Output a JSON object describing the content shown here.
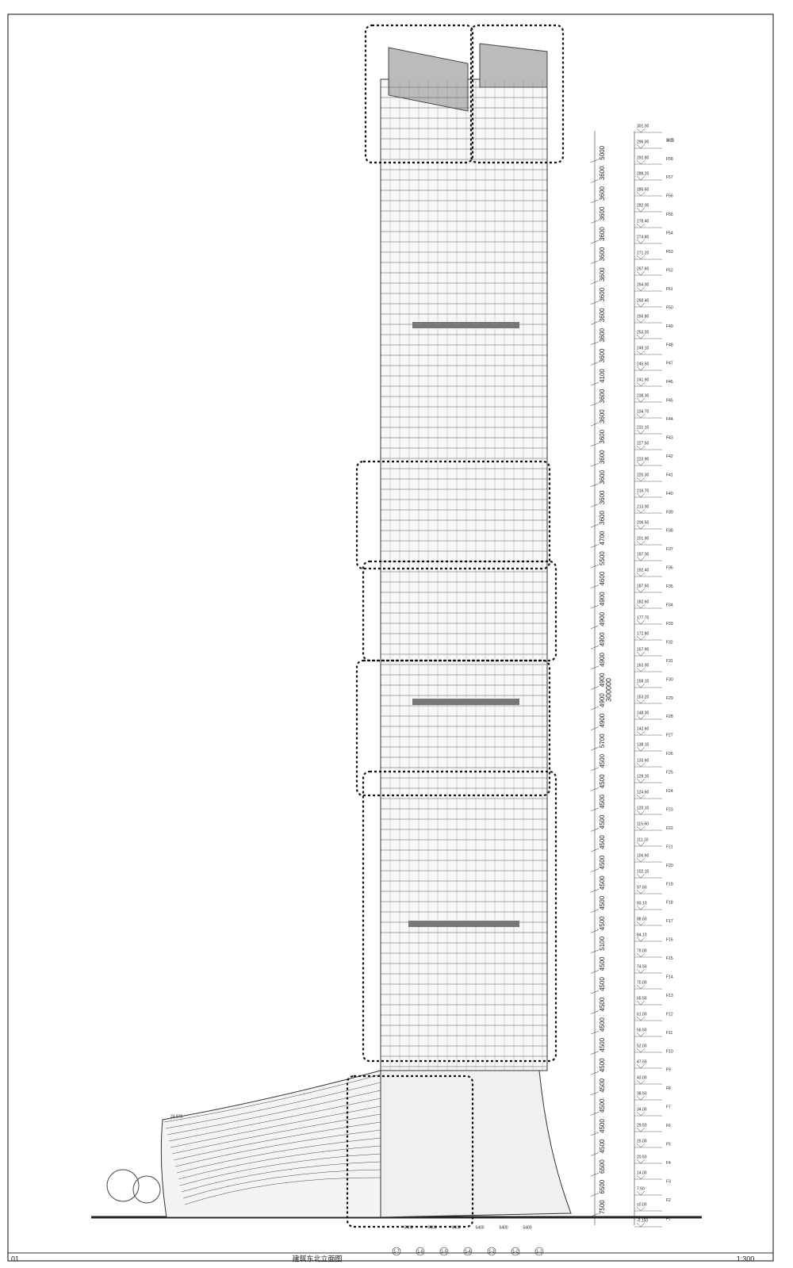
{
  "drawing": {
    "sheet_number": "01",
    "title": "建筑东北立面图",
    "scale": "1:300",
    "total_height": "300000",
    "podium_level": "24.870",
    "levels": [
      "301.00",
      "296.00",
      "292.80",
      "289.20",
      "285.60",
      "282.00",
      "278.40",
      "274.80",
      "271.20",
      "267.60",
      "264.00",
      "260.40",
      "256.80",
      "253.20",
      "249.10",
      "245.50",
      "241.90",
      "238.30",
      "234.70",
      "231.10",
      "227.50",
      "223.90",
      "220.30",
      "216.70",
      "213.00",
      "206.50",
      "201.90",
      "197.30",
      "192.40",
      "187.50",
      "182.60",
      "177.70",
      "172.80",
      "167.90",
      "163.00",
      "158.10",
      "153.20",
      "148.30",
      "142.60",
      "138.10",
      "133.60",
      "129.10",
      "124.60",
      "120.10",
      "115.60",
      "111.10",
      "106.60",
      "102.10",
      "97.60",
      "93.10",
      "88.60",
      "84.10",
      "79.00",
      "74.50",
      "70.00",
      "65.50",
      "61.00",
      "56.50",
      "52.00",
      "47.50",
      "43.00",
      "38.50",
      "34.00",
      "29.50",
      "25.00",
      "20.50",
      "14.00",
      "7.50",
      "±0.00",
      "-0.150"
    ],
    "floors": [
      "屋面",
      "F58",
      "F57",
      "F56",
      "F55",
      "F54",
      "F53",
      "F52",
      "F51",
      "F50",
      "F49",
      "F48",
      "F47",
      "F46",
      "F45",
      "F44",
      "F43",
      "F42",
      "F41",
      "F40",
      "F39",
      "F38",
      "F37",
      "F36",
      "F35",
      "F34",
      "F33",
      "F32",
      "F31",
      "F30",
      "F29",
      "F28",
      "F27",
      "F26",
      "F25",
      "F24",
      "F23",
      "F22",
      "F21",
      "F20",
      "F19",
      "F18",
      "F17",
      "F16",
      "F15",
      "F14",
      "F13",
      "F12",
      "F11",
      "F10",
      "F9",
      "F8",
      "F7",
      "F6",
      "F5",
      "F4",
      "F3",
      "F2",
      "F1"
    ],
    "dimensions": [
      "5000",
      "3600",
      "3600",
      "3600",
      "3600",
      "3600",
      "3600",
      "3600",
      "3600",
      "3600",
      "3600",
      "4100",
      "3600",
      "3600",
      "3600",
      "3600",
      "3600",
      "3600",
      "3600",
      "4700",
      "5500",
      "4600",
      "4900",
      "4900",
      "4900",
      "4900",
      "4900",
      "4900",
      "4900",
      "5700",
      "4500",
      "4500",
      "4500",
      "4500",
      "4500",
      "4500",
      "4500",
      "4500",
      "4500",
      "5100",
      "4500",
      "4500",
      "4500",
      "4500",
      "4500",
      "4500",
      "4500",
      "4500",
      "4500",
      "4500",
      "6500",
      "6500",
      "7500"
    ],
    "grid_axes": [
      "1-7",
      "1-6",
      "1-5",
      "1-4",
      "1-3",
      "1-2",
      "1-1"
    ],
    "grid_spacing": [
      "5400",
      "5400",
      "5400",
      "5400",
      "5400",
      "5400"
    ]
  }
}
